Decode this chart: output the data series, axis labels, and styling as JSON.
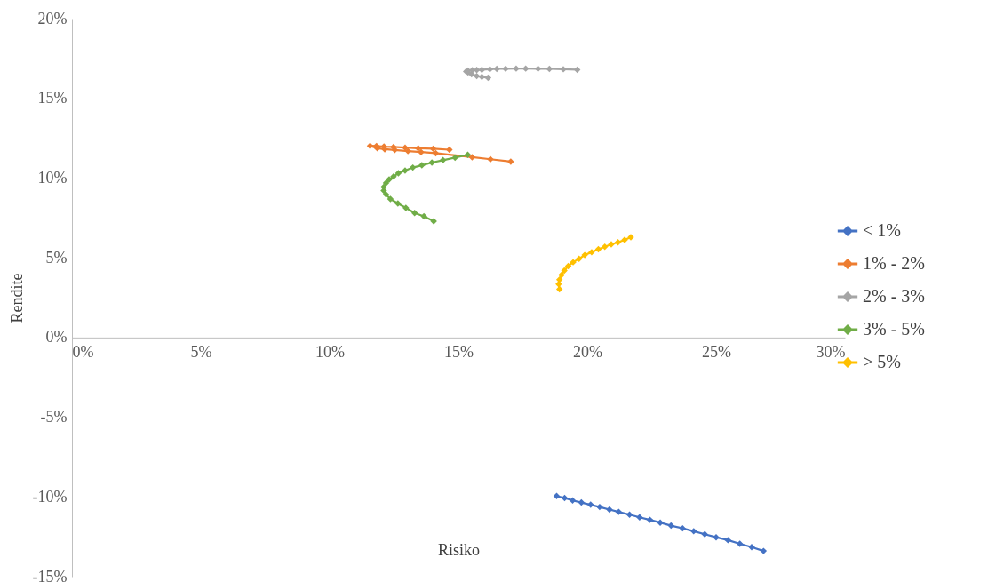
{
  "chart_data": {
    "type": "line",
    "xlabel": "Risiko",
    "ylabel": "Rendite",
    "xlim": [
      0,
      30
    ],
    "ylim": [
      -15,
      20
    ],
    "xticks": [
      {
        "value": 0,
        "label": "0%"
      },
      {
        "value": 5,
        "label": "5%"
      },
      {
        "value": 10,
        "label": "10%"
      },
      {
        "value": 15,
        "label": "15%"
      },
      {
        "value": 20,
        "label": "20%"
      },
      {
        "value": 25,
        "label": "25%"
      },
      {
        "value": 30,
        "label": "30%"
      }
    ],
    "yticks": [
      {
        "value": -15,
        "label": "-15%"
      },
      {
        "value": -10,
        "label": "-10%"
      },
      {
        "value": -5,
        "label": "-5%"
      },
      {
        "value": 0,
        "label": "0%"
      },
      {
        "value": 5,
        "label": "5%"
      },
      {
        "value": 10,
        "label": "10%"
      },
      {
        "value": 15,
        "label": "15%"
      },
      {
        "value": 20,
        "label": "20%"
      }
    ],
    "grid": false,
    "legend": "right",
    "marker": "diamond",
    "line_style": "solid",
    "series": [
      {
        "name": "< 1%",
        "color": "#4472c4",
        "x": [
          18.81,
          19.12,
          19.43,
          19.77,
          20.13,
          20.48,
          20.86,
          21.22,
          21.64,
          22.03,
          22.43,
          22.83,
          23.25,
          23.7,
          24.13,
          24.56,
          25.0,
          25.46,
          25.92,
          26.38,
          26.84
        ],
        "values": [
          -9.94,
          -10.07,
          -10.22,
          -10.35,
          -10.49,
          -10.63,
          -10.79,
          -10.94,
          -11.11,
          -11.28,
          -11.44,
          -11.61,
          -11.8,
          -11.97,
          -12.15,
          -12.34,
          -12.53,
          -12.71,
          -12.94,
          -13.15,
          -13.39
        ]
      },
      {
        "name": "1% - 2%",
        "color": "#ed7d31",
        "x": [
          17.03,
          16.24,
          15.53,
          14.12,
          13.55,
          13.04,
          12.53,
          12.14,
          11.85,
          11.57,
          11.82,
          12.11,
          12.48,
          12.93,
          13.44,
          14.02,
          14.65
        ],
        "values": [
          11.03,
          11.18,
          11.31,
          11.56,
          11.63,
          11.69,
          11.76,
          11.81,
          11.87,
          12.02,
          12.01,
          11.97,
          11.95,
          11.91,
          11.87,
          11.84,
          11.78
        ]
      },
      {
        "name": "2% - 3%",
        "color": "#a5a5a5",
        "x": [
          16.15,
          15.91,
          15.71,
          15.51,
          15.37,
          15.3,
          15.37,
          15.54,
          15.71,
          15.91,
          16.22,
          16.49,
          16.83,
          17.24,
          17.61,
          18.09,
          18.53,
          19.07,
          19.61
        ],
        "values": [
          16.29,
          16.35,
          16.4,
          16.52,
          16.63,
          16.69,
          16.74,
          16.77,
          16.78,
          16.8,
          16.83,
          16.85,
          16.86,
          16.87,
          16.87,
          16.86,
          16.85,
          16.83,
          16.8
        ]
      },
      {
        "name": "3% - 5%",
        "color": "#70ad47",
        "x": [
          15.36,
          14.87,
          14.4,
          13.97,
          13.58,
          13.23,
          12.93,
          12.67,
          12.48,
          12.31,
          12.19,
          12.1,
          12.1,
          12.19,
          12.36,
          12.65,
          12.96,
          13.3,
          13.66,
          14.04
        ],
        "values": [
          11.46,
          11.28,
          11.12,
          10.97,
          10.8,
          10.66,
          10.47,
          10.3,
          10.1,
          9.91,
          9.69,
          9.44,
          9.21,
          8.97,
          8.69,
          8.41,
          8.13,
          7.81,
          7.6,
          7.29
        ]
      },
      {
        "name": "> 5%",
        "color": "#ffc000",
        "x": [
          18.92,
          18.89,
          18.92,
          19.0,
          19.11,
          19.26,
          19.45,
          19.68,
          19.9,
          20.17,
          20.43,
          20.68,
          20.93,
          21.19,
          21.45,
          21.69
        ],
        "values": [
          3.03,
          3.35,
          3.63,
          3.92,
          4.2,
          4.48,
          4.72,
          4.94,
          5.17,
          5.35,
          5.54,
          5.69,
          5.84,
          5.97,
          6.12,
          6.29
        ]
      }
    ]
  }
}
